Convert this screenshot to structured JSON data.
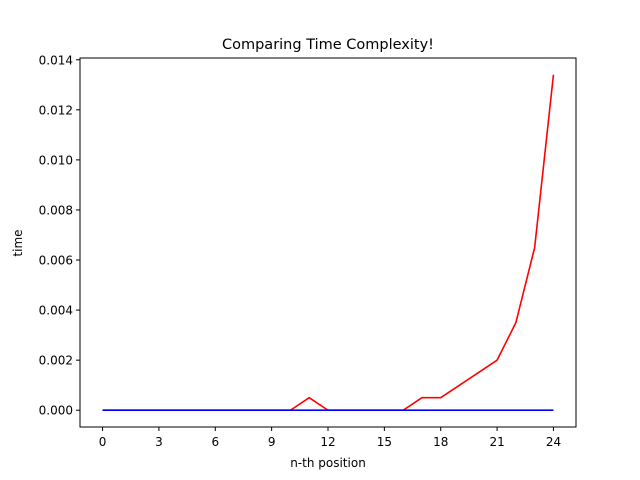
{
  "chart_data": {
    "type": "line",
    "title": "Comparing Time Complexity!",
    "xlabel": "n-th position",
    "ylabel": "time",
    "x": [
      0,
      1,
      2,
      3,
      4,
      5,
      6,
      7,
      8,
      9,
      10,
      11,
      12,
      13,
      14,
      15,
      16,
      17,
      18,
      19,
      20,
      21,
      22,
      23,
      24
    ],
    "xlim": [
      -1.2,
      25.2
    ],
    "ylim": [
      -0.00067,
      0.01407
    ],
    "xticks": [
      "0",
      "3",
      "6",
      "9",
      "12",
      "15",
      "18",
      "21",
      "24"
    ],
    "yticks": [
      "0.000",
      "0.002",
      "0.004",
      "0.006",
      "0.008",
      "0.010",
      "0.012",
      "0.014"
    ],
    "grid": false,
    "series": [
      {
        "color": "#ff0000",
        "values": [
          0,
          0,
          0,
          0,
          0,
          0,
          0,
          0,
          0,
          0,
          0,
          0.0005,
          0,
          0,
          0,
          0,
          0,
          0.0005,
          0.0005,
          0.001,
          0.0015,
          0.002,
          0.0035,
          0.0065,
          0.0134
        ]
      },
      {
        "color": "#0000ff",
        "values": [
          0,
          0,
          0,
          0,
          0,
          0,
          0,
          0,
          0,
          0,
          0,
          0,
          0,
          0,
          0,
          0,
          0,
          0,
          0,
          0,
          0,
          0,
          0,
          0,
          0
        ]
      }
    ]
  }
}
